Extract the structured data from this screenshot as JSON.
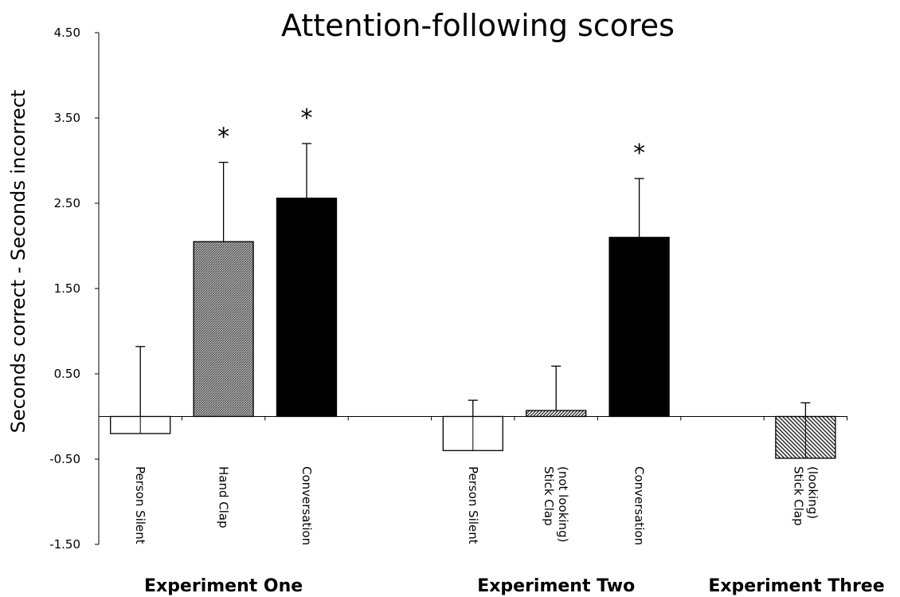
{
  "chart_data": {
    "type": "bar",
    "title": "Attention-following scores",
    "xlabel": "",
    "ylabel": "Seconds correct - Seconds incorrect",
    "ylim": [
      -1.5,
      4.5
    ],
    "yticks": [
      "4.50",
      "3.50",
      "2.50",
      "1.50",
      "0.50",
      "-0.50",
      "-1.50"
    ],
    "ytick_values": [
      4.5,
      3.5,
      2.5,
      1.5,
      0.5,
      -0.5,
      -1.5
    ],
    "grid": false,
    "legend": "none",
    "categories": [
      [
        "Person Silent"
      ],
      [
        "Hand Clap"
      ],
      [
        "Conversation"
      ],
      [
        "Person Silent"
      ],
      [
        "Stick Clap",
        "(not looking)"
      ],
      [
        "Conversation"
      ],
      [
        "Stick Clap",
        "(looking)"
      ]
    ],
    "values": [
      -0.2,
      2.05,
      2.56,
      -0.4,
      0.07,
      2.1,
      -0.49
    ],
    "error_bars": [
      0.82,
      2.98,
      3.2,
      0.19,
      0.59,
      2.79,
      0.16
    ],
    "fills": [
      "white",
      "hatch-dense",
      "black",
      "white",
      "hatch-diag",
      "black",
      "hatch-diag-wide"
    ],
    "significance": [
      "",
      "*",
      "*",
      "",
      "",
      "*",
      ""
    ],
    "groups": [
      "Experiment One",
      "Experiment Two",
      "Experiment Three"
    ],
    "group_members": [
      [
        0,
        1,
        2
      ],
      [
        3,
        4,
        5
      ],
      [
        6
      ]
    ],
    "colors": {
      "bar_dark": "#000000",
      "hatch": "#555555",
      "axis": "#000000",
      "background": "#ffffff"
    }
  }
}
